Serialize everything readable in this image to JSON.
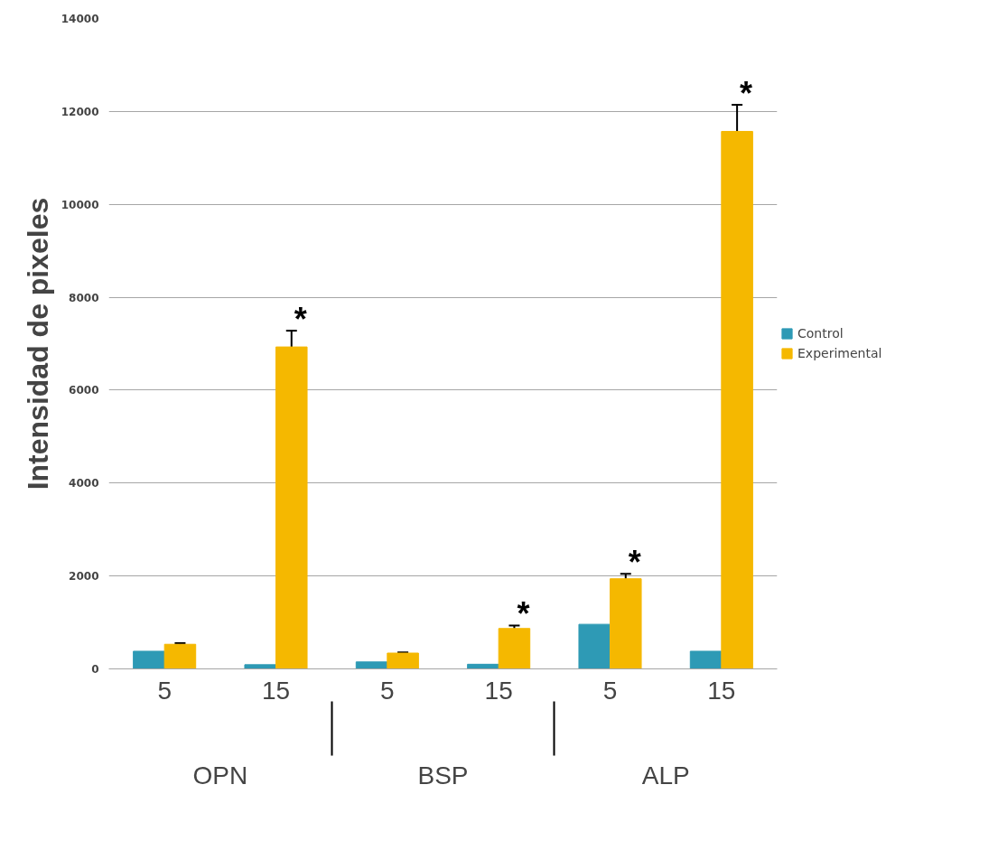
{
  "chart_data": {
    "type": "bar",
    "ylabel": "Intensidad de pixeles",
    "categories": [
      "5",
      "15",
      "5",
      "15",
      "5",
      "15"
    ],
    "annotations": [
      "OPN",
      "BSP",
      "ALP"
    ],
    "series": [
      {
        "name": "Control",
        "color": "#2e9ab5",
        "values": [
          380,
          90,
          150,
          100,
          960,
          380
        ]
      },
      {
        "name": "Experimental",
        "color": "#f5b800",
        "values": [
          530,
          6930,
          340,
          870,
          1940,
          11570
        ],
        "errors": [
          25,
          350,
          15,
          65,
          105,
          575
        ],
        "value_labels": [
          null,
          "*",
          null,
          "*",
          "*",
          "*"
        ]
      }
    ],
    "ylim": [
      0,
      14000
    ],
    "yticks": [
      0,
      2000,
      4000,
      6000,
      8000,
      10000,
      12000,
      14000
    ],
    "grid": "y",
    "legend": "right"
  }
}
